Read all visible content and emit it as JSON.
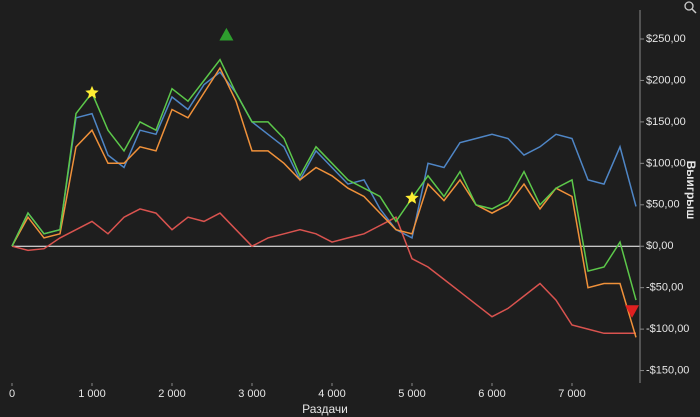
{
  "chart_data": {
    "type": "line",
    "x_label": "Раздачи",
    "y_label": "Выигрыш",
    "x": [
      0,
      200,
      400,
      600,
      800,
      1000,
      1200,
      1400,
      1600,
      1800,
      2000,
      2200,
      2400,
      2600,
      2800,
      3000,
      3200,
      3400,
      3600,
      3800,
      4000,
      4200,
      4400,
      4600,
      4800,
      5000,
      5200,
      5400,
      5600,
      5800,
      6000,
      6200,
      6400,
      6600,
      6800,
      7000,
      7200,
      7400,
      7600,
      7800
    ],
    "series": [
      {
        "color": "#4f86c6",
        "values": [
          0,
          40,
          15,
          20,
          155,
          160,
          110,
          95,
          140,
          135,
          180,
          165,
          195,
          210,
          185,
          150,
          135,
          120,
          80,
          115,
          95,
          75,
          80,
          45,
          20,
          10,
          100,
          95,
          125,
          130,
          135,
          130,
          110,
          120,
          135,
          130,
          80,
          75,
          120,
          48
        ]
      },
      {
        "color": "#d9534f",
        "values": [
          0,
          -5,
          -3,
          10,
          20,
          30,
          15,
          35,
          45,
          40,
          20,
          35,
          30,
          40,
          20,
          0,
          10,
          15,
          20,
          15,
          5,
          10,
          15,
          25,
          35,
          -15,
          -25,
          -40,
          -55,
          -70,
          -85,
          -75,
          -60,
          -45,
          -65,
          -95,
          -100,
          -105,
          -105,
          -105
        ]
      },
      {
        "color": "#f0913a",
        "values": [
          0,
          35,
          10,
          15,
          120,
          140,
          100,
          100,
          120,
          115,
          165,
          155,
          185,
          215,
          175,
          115,
          115,
          100,
          80,
          95,
          85,
          70,
          60,
          40,
          20,
          15,
          75,
          55,
          80,
          50,
          40,
          50,
          75,
          45,
          70,
          60,
          -50,
          -45,
          -45,
          -110
        ]
      },
      {
        "color": "#5cc84a",
        "values": [
          0,
          40,
          15,
          20,
          160,
          185,
          140,
          115,
          150,
          140,
          190,
          175,
          200,
          225,
          185,
          150,
          150,
          130,
          85,
          120,
          100,
          80,
          70,
          60,
          30,
          58,
          85,
          60,
          90,
          50,
          45,
          55,
          90,
          50,
          70,
          80,
          -30,
          -25,
          5,
          -65
        ]
      }
    ],
    "markers": [
      {
        "x": 1000,
        "y": 185,
        "shape": "star",
        "color": "#ffee33"
      },
      {
        "x": 2680,
        "y": 255,
        "shape": "triangle-up",
        "color": "#2e9e2e"
      },
      {
        "x": 5000,
        "y": 58,
        "shape": "star",
        "color": "#ffee33"
      },
      {
        "x": 7750,
        "y": -78,
        "shape": "triangle-down",
        "color": "#e02020"
      }
    ],
    "zero_line": "#ffffff",
    "xlim": [
      0,
      7850
    ],
    "ylim": [
      -165,
      285
    ],
    "xticks": [
      0,
      {
        "value": 1000,
        "label": "1 000"
      },
      {
        "value": 2000,
        "label": "2 000"
      },
      {
        "value": 3000,
        "label": "3 000"
      },
      {
        "value": 4000,
        "label": "4 000"
      },
      {
        "value": 5000,
        "label": "5 000"
      },
      {
        "value": 6000,
        "label": "6 000"
      },
      {
        "value": 7000,
        "label": "7 000"
      }
    ],
    "yticks": [
      {
        "value": -150,
        "label": "-$150,00"
      },
      {
        "value": -100,
        "label": "-$100,00"
      },
      {
        "value": -50,
        "label": "-$50,00"
      },
      {
        "value": 0,
        "label": "$0,00"
      },
      {
        "value": 50,
        "label": "$50,00"
      },
      {
        "value": 100,
        "label": "$100,00"
      },
      {
        "value": 150,
        "label": "$150,00"
      },
      {
        "value": 200,
        "label": "$200,00"
      },
      {
        "value": 250,
        "label": "$250,00"
      }
    ]
  }
}
